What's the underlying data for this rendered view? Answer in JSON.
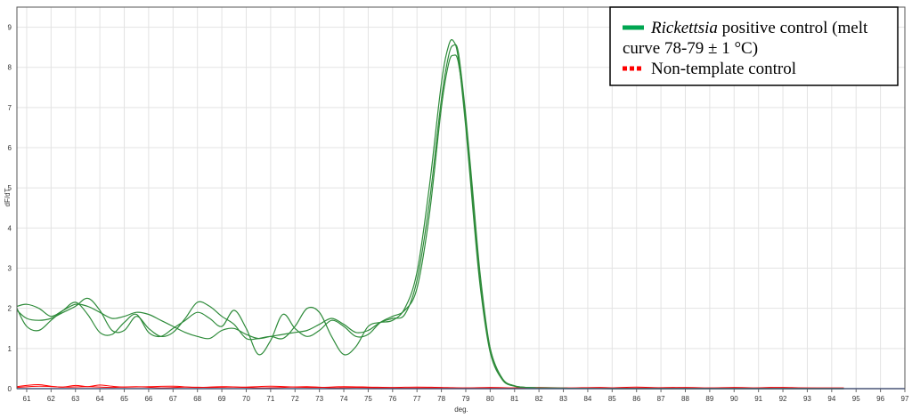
{
  "chart_data": {
    "type": "line",
    "xlabel": "deg.",
    "ylabel": "dF/dT",
    "xlim": [
      60.6,
      97
    ],
    "ylim": [
      0,
      9.5
    ],
    "x_ticks": [
      "61",
      "62",
      "63",
      "64",
      "65",
      "66",
      "67",
      "68",
      "69",
      "70",
      "71",
      "72",
      "73",
      "74",
      "75",
      "76",
      "77",
      "78",
      "79",
      "80",
      "81",
      "82",
      "83",
      "84",
      "85",
      "86",
      "87",
      "88",
      "89",
      "90",
      "91",
      "92",
      "93",
      "94",
      "95",
      "96",
      "97"
    ],
    "y_ticks": [
      "0",
      "1",
      "2",
      "3",
      "4",
      "5",
      "6",
      "7",
      "8",
      "9"
    ],
    "grid": "on",
    "legend_position": "top-right",
    "legend": [
      {
        "italic": "Rickettsia",
        "rest": " positive control (melt",
        "line2": "curve 78-79 ± 1 °C)",
        "color": "#00a651",
        "style": "solid"
      },
      {
        "label": "Non-template control",
        "color": "#ff0000",
        "style": "dotted"
      }
    ],
    "series": [
      {
        "group": "positive",
        "color": "#2e8b3a",
        "x": [
          60.6,
          61,
          61.5,
          62,
          62.5,
          63,
          63.5,
          64,
          64.5,
          65,
          65.5,
          66,
          66.5,
          67,
          67.5,
          68,
          68.5,
          69,
          69.5,
          70,
          70.5,
          71,
          71.5,
          72,
          72.5,
          73,
          73.5,
          74,
          74.5,
          75,
          75.5,
          76,
          76.5,
          77,
          77.5,
          78,
          78.3,
          78.5,
          78.7,
          79,
          79.3,
          79.6,
          80,
          80.5,
          81,
          81.5,
          82,
          83,
          85,
          90,
          94.5
        ],
        "y": [
          2.05,
          2.1,
          2.0,
          1.8,
          1.95,
          2.1,
          2.05,
          1.9,
          1.75,
          1.8,
          1.9,
          1.85,
          1.7,
          1.55,
          1.4,
          1.3,
          1.25,
          1.45,
          1.5,
          1.35,
          1.25,
          1.3,
          1.35,
          1.4,
          1.45,
          1.6,
          1.75,
          1.6,
          1.4,
          1.45,
          1.65,
          1.75,
          1.85,
          2.7,
          4.6,
          7.2,
          8.3,
          8.55,
          8.35,
          6.8,
          4.8,
          2.8,
          1.0,
          0.25,
          0.07,
          0.03,
          0.02,
          0.01,
          0.0,
          0.0,
          0.0
        ]
      },
      {
        "group": "positive",
        "color": "#2e8b3a",
        "x": [
          60.6,
          61,
          61.5,
          62,
          62.5,
          63,
          63.5,
          64,
          64.5,
          65,
          65.5,
          66,
          66.5,
          67,
          67.5,
          68,
          68.5,
          69,
          69.5,
          70,
          70.5,
          71,
          71.5,
          72,
          72.5,
          73,
          73.5,
          74,
          74.5,
          75,
          75.5,
          76,
          76.5,
          77,
          77.5,
          78,
          78.3,
          78.5,
          78.7,
          79,
          79.3,
          79.6,
          80,
          80.5,
          81,
          81.5,
          82,
          83,
          85,
          90,
          94.5
        ],
        "y": [
          1.95,
          1.75,
          1.7,
          1.75,
          1.9,
          2.05,
          2.25,
          1.95,
          1.45,
          1.45,
          1.8,
          1.5,
          1.3,
          1.4,
          1.75,
          2.15,
          2.05,
          1.8,
          1.6,
          1.25,
          1.25,
          1.3,
          1.25,
          1.55,
          2.0,
          1.9,
          1.3,
          0.85,
          1.05,
          1.55,
          1.65,
          1.7,
          2.0,
          2.9,
          5.0,
          7.6,
          8.55,
          8.65,
          8.2,
          6.5,
          4.4,
          2.5,
          0.9,
          0.22,
          0.06,
          0.03,
          0.02,
          0.01,
          0.0,
          0.0,
          0.0
        ]
      },
      {
        "group": "positive",
        "color": "#2e8b3a",
        "x": [
          60.6,
          61,
          61.5,
          62,
          62.5,
          63,
          63.5,
          64,
          64.5,
          65,
          65.5,
          66,
          66.5,
          67,
          67.5,
          68,
          68.5,
          69,
          69.5,
          70,
          70.5,
          71,
          71.5,
          72,
          72.5,
          73,
          73.5,
          74,
          74.5,
          75,
          75.5,
          76,
          76.5,
          77,
          77.5,
          78,
          78.3,
          78.5,
          78.7,
          79,
          79.3,
          79.6,
          80,
          80.5,
          81,
          81.5,
          82,
          83,
          85,
          90,
          94.5
        ],
        "y": [
          2.0,
          1.55,
          1.45,
          1.7,
          1.95,
          2.15,
          1.85,
          1.4,
          1.35,
          1.65,
          1.85,
          1.4,
          1.3,
          1.5,
          1.7,
          1.9,
          1.75,
          1.55,
          1.95,
          1.5,
          0.85,
          1.2,
          1.85,
          1.5,
          1.3,
          1.45,
          1.7,
          1.55,
          1.3,
          1.35,
          1.65,
          1.8,
          1.95,
          2.5,
          4.3,
          7.0,
          8.1,
          8.3,
          8.1,
          6.7,
          4.6,
          2.6,
          1.0,
          0.25,
          0.07,
          0.03,
          0.02,
          0.01,
          0.0,
          0.0,
          0.0
        ]
      },
      {
        "group": "ntc",
        "color": "#ff0000",
        "x": [
          60.6,
          61,
          61.5,
          62,
          62.5,
          63,
          63.5,
          64,
          64.5,
          65,
          66,
          67,
          68,
          69,
          70,
          71,
          72,
          73,
          74,
          75,
          76,
          77,
          78,
          79,
          80,
          81,
          82,
          83,
          84,
          85,
          86,
          87,
          88,
          89,
          90,
          91,
          92,
          93,
          94.5
        ],
        "y": [
          0.05,
          0.08,
          0.1,
          0.06,
          0.04,
          0.08,
          0.05,
          0.09,
          0.06,
          0.04,
          0.05,
          0.06,
          0.03,
          0.05,
          0.04,
          0.06,
          0.04,
          0.03,
          0.05,
          0.04,
          0.03,
          0.04,
          0.03,
          0.02,
          0.03,
          0.02,
          0.03,
          0.02,
          0.01,
          0.02,
          0.04,
          0.02,
          0.03,
          0.02,
          0.03,
          0.02,
          0.03,
          0.02,
          0.02
        ]
      },
      {
        "group": "ntc",
        "color": "#ff0000",
        "x": [
          60.6,
          61.5,
          62.5,
          63.5,
          64.5,
          65.5,
          66.5,
          67.5,
          68.5,
          69.5,
          70.5,
          71.5,
          72.5,
          73.5,
          74.5,
          75.5,
          76.5,
          77.5,
          78.5,
          79.5,
          80.5,
          81.5,
          82.5,
          83.5,
          84.5,
          85.5,
          86.5,
          87.5,
          88.5,
          89.5,
          90.5,
          91.5,
          92.5,
          93.5,
          94.5
        ],
        "y": [
          0.03,
          0.06,
          0.04,
          0.05,
          0.03,
          0.05,
          0.02,
          0.04,
          0.03,
          0.04,
          0.02,
          0.03,
          0.05,
          0.02,
          0.03,
          0.02,
          0.01,
          0.02,
          0.01,
          0.02,
          0.01,
          0.02,
          0.01,
          0.02,
          0.03,
          0.01,
          0.02,
          0.03,
          0.01,
          0.02,
          0.01,
          0.03,
          0.02,
          0.01,
          0.01
        ]
      }
    ]
  }
}
